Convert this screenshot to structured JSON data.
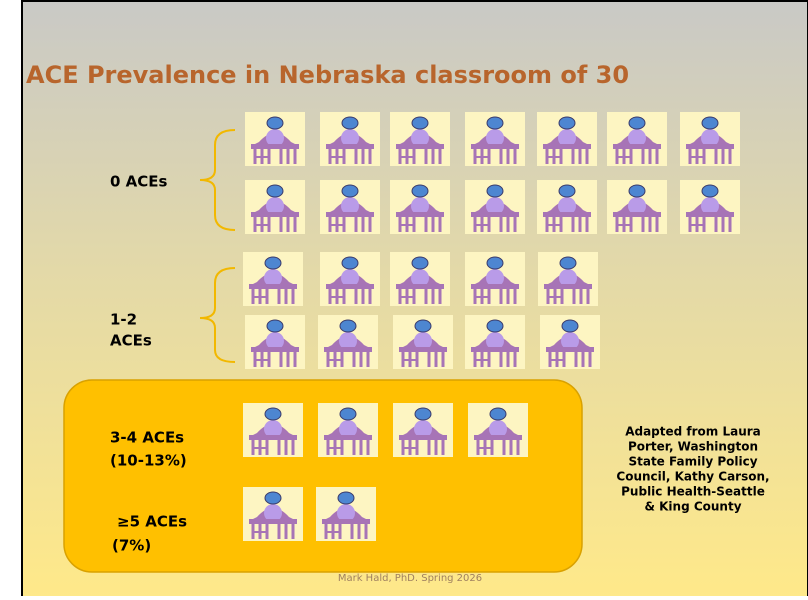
{
  "title": "ACE Prevalence in Nebraska classroom of 30",
  "groups": [
    {
      "label": [
        "0 ACEs"
      ]
    },
    {
      "label": [
        "1-2",
        "ACEs"
      ]
    },
    {
      "label": [
        "3-4 ACEs",
        "(10-13%)"
      ]
    },
    {
      "label": [
        "≥5 ACEs",
        "(7%)"
      ]
    }
  ],
  "attribution": [
    "Adapted from Laura",
    "Porter, Washington",
    "State Family Policy",
    "Council, Kathy Carson,",
    "Public Health-Seattle",
    "& King County"
  ],
  "footer": "Mark Hald, PhD.  Spring 2026"
}
